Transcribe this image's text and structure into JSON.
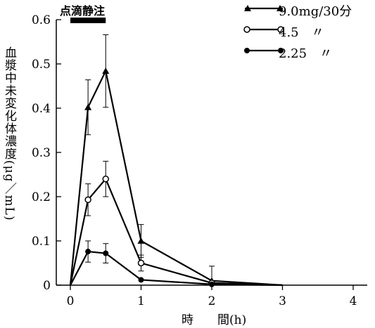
{
  "chart_data": {
    "type": "line",
    "title": "",
    "annotation": "点滴静注",
    "xlabel": "時　　間(h)",
    "ylabel": "血漿中未変化体濃度(μg／mL)",
    "xlim": [
      0,
      4
    ],
    "ylim": [
      0,
      0.6
    ],
    "xticks": [
      "0",
      "1",
      "2",
      "3",
      "4"
    ],
    "yticks": [
      "0",
      "0.1",
      "0.2",
      "0.3",
      "0.4",
      "0.5",
      "0.6"
    ],
    "legend_position": "top-right",
    "infusion_period": [
      0,
      0.5
    ],
    "series": [
      {
        "name": "9.0mg/30分",
        "marker": "triangle",
        "x": [
          0,
          0.25,
          0.5,
          1,
          2,
          3
        ],
        "y": [
          0,
          0.402,
          0.484,
          0.1,
          0.01,
          0
        ],
        "err": [
          0,
          0.062,
          0.082,
          0.037,
          0.033,
          0
        ]
      },
      {
        "name": "4.5　〃",
        "marker": "open-circle",
        "x": [
          0,
          0.25,
          0.5,
          1,
          2,
          3
        ],
        "y": [
          0,
          0.193,
          0.24,
          0.05,
          0.005,
          0
        ],
        "err": [
          0,
          0.036,
          0.04,
          0.018,
          0,
          0
        ]
      },
      {
        "name": "2.25　〃",
        "marker": "filled-circle",
        "x": [
          0,
          0.25,
          0.5,
          1,
          2,
          3
        ],
        "y": [
          0,
          0.076,
          0.072,
          0.012,
          0.002,
          0
        ],
        "err": [
          0,
          0.024,
          0.022,
          0,
          0,
          0
        ]
      }
    ]
  }
}
